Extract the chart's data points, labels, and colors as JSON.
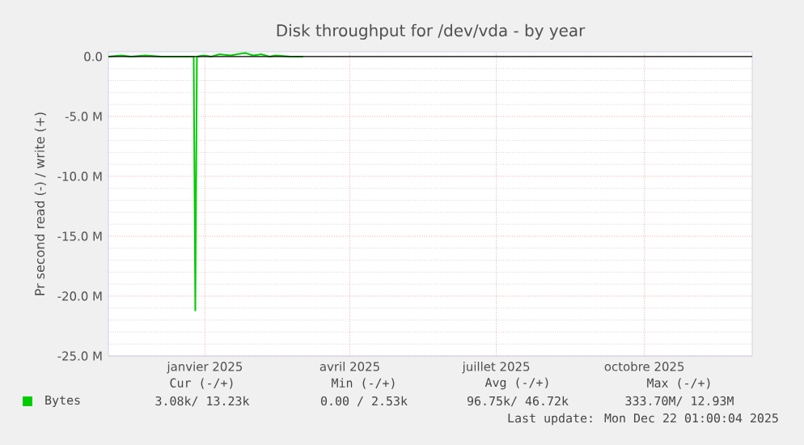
{
  "chart_data": {
    "type": "line",
    "title": "Disk throughput for /dev/vda - by year",
    "ylabel": "Pr second read (-) / write (+)",
    "xlim": [
      "2024-11-17",
      "2025-12-22"
    ],
    "xticks": [
      {
        "value": "2025-01-16",
        "label": "janvier 2025"
      },
      {
        "value": "2025-04-16",
        "label": "avril 2025"
      },
      {
        "value": "2025-07-16",
        "label": "juillet 2025"
      },
      {
        "value": "2025-10-16",
        "label": "octobre 2025"
      }
    ],
    "ylim": [
      -25000000,
      400000
    ],
    "yticks": [
      {
        "value": -25000000,
        "label": "-25.0 M"
      },
      {
        "value": -20000000,
        "label": "-20.0 M"
      },
      {
        "value": -15000000,
        "label": "-15.0 M"
      },
      {
        "value": -10000000,
        "label": "-10.0 M"
      },
      {
        "value": -5000000,
        "label": "-5.0 M"
      },
      {
        "value": 0,
        "label": "0.0"
      }
    ],
    "x": [
      "2024-11-17",
      "2024-11-25",
      "2024-12-01",
      "2024-12-10",
      "2024-12-20",
      "2025-01-01",
      "2025-01-09",
      "2025-01-10",
      "2025-01-11",
      "2025-01-15",
      "2025-01-20",
      "2025-01-25",
      "2025-02-01",
      "2025-02-05",
      "2025-02-10",
      "2025-02-15",
      "2025-02-20",
      "2025-02-25",
      "2025-03-01",
      "2025-03-10",
      "2025-03-18"
    ],
    "series": [
      {
        "name": "Bytes",
        "color": "#00cc00",
        "values": [
          0,
          100000,
          0,
          100000,
          0,
          0,
          0,
          -21200000,
          0,
          100000,
          0,
          200000,
          100000,
          200000,
          300000,
          100000,
          200000,
          0,
          100000,
          0,
          0
        ]
      }
    ],
    "grid": true,
    "legend": "bottom",
    "annotations": [
      "Cur (-/+)",
      "Min (-/+)",
      "Avg (-/+)",
      "Max (-/+)",
      "3.08k/ 13.23k",
      "0.00 /   2.53k",
      "96.75k/ 46.72k",
      "333.70M/ 12.93M",
      "Last update: Mon Dec 22 01:00:04 2025"
    ]
  }
}
